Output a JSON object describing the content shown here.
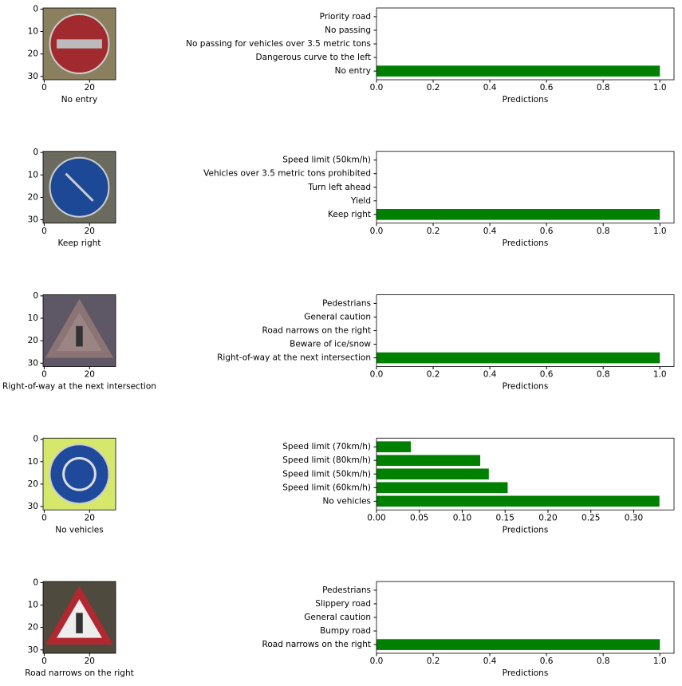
{
  "chart_data": [
    {
      "type": "image",
      "xlabel": "No entry",
      "xlim": [
        -0.5,
        31.5
      ],
      "ylim": [
        31.5,
        -0.5
      ],
      "xticks": [
        0,
        20
      ],
      "yticks": [
        0,
        10,
        20,
        30
      ]
    },
    {
      "type": "barh",
      "xlabel": "Predictions",
      "color": "#008000",
      "categories": [
        "No entry",
        "Dangerous curve to the left",
        "No passing for vehicles over 3.5 metric tons",
        "No passing",
        "Priority road"
      ],
      "values": [
        1.0,
        0,
        0,
        0,
        0
      ],
      "xlim": [
        0,
        1.05
      ],
      "xticks": [
        {
          "value": 0,
          "label": "0.0"
        },
        {
          "value": 0.2,
          "label": "0.2"
        },
        {
          "value": 0.4,
          "label": "0.4"
        },
        {
          "value": 0.6,
          "label": "0.6"
        },
        {
          "value": 0.8,
          "label": "0.8"
        },
        {
          "value": 1.0,
          "label": "1.0"
        }
      ]
    },
    {
      "type": "image",
      "xlabel": "Keep right",
      "xlim": [
        -0.5,
        31.5
      ],
      "ylim": [
        31.5,
        -0.5
      ],
      "xticks": [
        0,
        20
      ],
      "yticks": [
        0,
        10,
        20,
        30
      ]
    },
    {
      "type": "barh",
      "xlabel": "Predictions",
      "color": "#008000",
      "categories": [
        "Keep right",
        "Yield",
        "Turn left ahead",
        "Vehicles over 3.5 metric tons prohibited",
        "Speed limit (50km/h)"
      ],
      "values": [
        1.0,
        0,
        0,
        0,
        0
      ],
      "xlim": [
        0,
        1.05
      ],
      "xticks": [
        {
          "value": 0,
          "label": "0.0"
        },
        {
          "value": 0.2,
          "label": "0.2"
        },
        {
          "value": 0.4,
          "label": "0.4"
        },
        {
          "value": 0.6,
          "label": "0.6"
        },
        {
          "value": 0.8,
          "label": "0.8"
        },
        {
          "value": 1.0,
          "label": "1.0"
        }
      ]
    },
    {
      "type": "image",
      "xlabel": "Right-of-way at the next intersection",
      "xlim": [
        -0.5,
        31.5
      ],
      "ylim": [
        31.5,
        -0.5
      ],
      "xticks": [
        0,
        20
      ],
      "yticks": [
        0,
        10,
        20,
        30
      ]
    },
    {
      "type": "barh",
      "xlabel": "Predictions",
      "color": "#008000",
      "categories": [
        "Right-of-way at the next intersection",
        "Beware of ice/snow",
        "Road narrows on the right",
        "General caution",
        "Pedestrians"
      ],
      "values": [
        1.0,
        0,
        0,
        0,
        0
      ],
      "xlim": [
        0,
        1.05
      ],
      "xticks": [
        {
          "value": 0,
          "label": "0.0"
        },
        {
          "value": 0.2,
          "label": "0.2"
        },
        {
          "value": 0.4,
          "label": "0.4"
        },
        {
          "value": 0.6,
          "label": "0.6"
        },
        {
          "value": 0.8,
          "label": "0.8"
        },
        {
          "value": 1.0,
          "label": "1.0"
        }
      ]
    },
    {
      "type": "image",
      "xlabel": "No vehicles",
      "xlim": [
        -0.5,
        31.5
      ],
      "ylim": [
        31.5,
        -0.5
      ],
      "xticks": [
        0,
        20
      ],
      "yticks": [
        0,
        10,
        20,
        30
      ]
    },
    {
      "type": "barh",
      "xlabel": "Predictions",
      "color": "#008000",
      "categories": [
        "No vehicles",
        "Speed limit (60km/h)",
        "Speed limit (50km/h)",
        "Speed limit (80km/h)",
        "Speed limit (70km/h)"
      ],
      "values": [
        0.33,
        0.153,
        0.131,
        0.121,
        0.04
      ],
      "xlim": [
        0,
        0.347
      ],
      "xticks": [
        {
          "value": 0,
          "label": "0.00"
        },
        {
          "value": 0.05,
          "label": "0.05"
        },
        {
          "value": 0.1,
          "label": "0.10"
        },
        {
          "value": 0.15,
          "label": "0.15"
        },
        {
          "value": 0.2,
          "label": "0.20"
        },
        {
          "value": 0.25,
          "label": "0.25"
        },
        {
          "value": 0.3,
          "label": "0.30"
        }
      ]
    },
    {
      "type": "image",
      "xlabel": "Road narrows on the right",
      "xlim": [
        -0.5,
        31.5
      ],
      "ylim": [
        31.5,
        -0.5
      ],
      "xticks": [
        0,
        20
      ],
      "yticks": [
        0,
        10,
        20,
        30
      ]
    },
    {
      "type": "barh",
      "xlabel": "Predictions",
      "color": "#008000",
      "categories": [
        "Road narrows on the right",
        "Bumpy road",
        "General caution",
        "Slippery road",
        "Pedestrians"
      ],
      "values": [
        1.0,
        0,
        0,
        0,
        0
      ],
      "xlim": [
        0,
        1.05
      ],
      "xticks": [
        {
          "value": 0,
          "label": "0.0"
        },
        {
          "value": 0.2,
          "label": "0.2"
        },
        {
          "value": 0.4,
          "label": "0.4"
        },
        {
          "value": 0.6,
          "label": "0.6"
        },
        {
          "value": 0.8,
          "label": "0.8"
        },
        {
          "value": 1.0,
          "label": "1.0"
        }
      ]
    }
  ]
}
